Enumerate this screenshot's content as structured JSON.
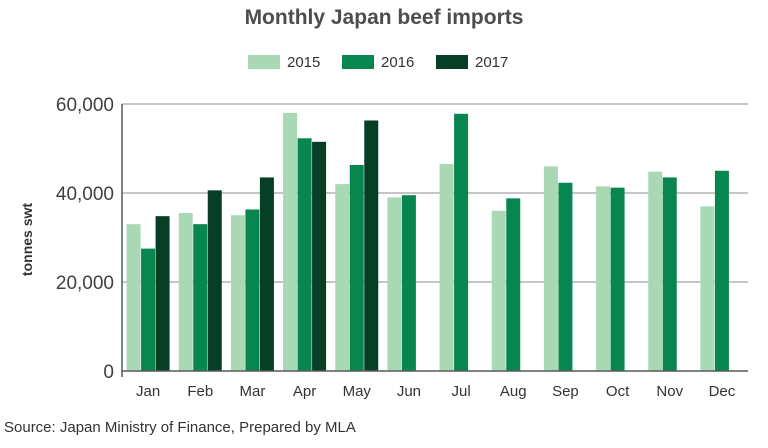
{
  "colors": {
    "2015": "#a9d8b5",
    "2016": "#07864f",
    "2017": "#073f26",
    "grid": "#8c8c8c",
    "axis": "#595959"
  },
  "chart_data": {
    "type": "bar",
    "title": "Monthly Japan beef imports",
    "xlabel": "",
    "ylabel": "tonnes swt",
    "ylim": [
      0,
      60000
    ],
    "yticks": [
      0,
      20000,
      40000,
      60000
    ],
    "ytick_labels": [
      "0",
      "20,000",
      "40,000",
      "60,000"
    ],
    "grid": true,
    "legend_position": "top-center",
    "categories": [
      "Jan",
      "Feb",
      "Mar",
      "Apr",
      "May",
      "Jun",
      "Jul",
      "Aug",
      "Sep",
      "Oct",
      "Nov",
      "Dec"
    ],
    "series": [
      {
        "name": "2015",
        "values": [
          33000,
          35500,
          35000,
          58000,
          42000,
          39000,
          46500,
          36000,
          46000,
          41500,
          44800,
          37000
        ]
      },
      {
        "name": "2016",
        "values": [
          27500,
          33000,
          36300,
          52300,
          46300,
          39500,
          57800,
          38800,
          42300,
          41200,
          43500,
          45000
        ]
      },
      {
        "name": "2017",
        "values": [
          34800,
          40600,
          43500,
          51500,
          56300,
          null,
          null,
          null,
          null,
          null,
          null,
          null
        ]
      }
    ],
    "source": "Source: Japan Ministry of Finance, Prepared by MLA"
  }
}
